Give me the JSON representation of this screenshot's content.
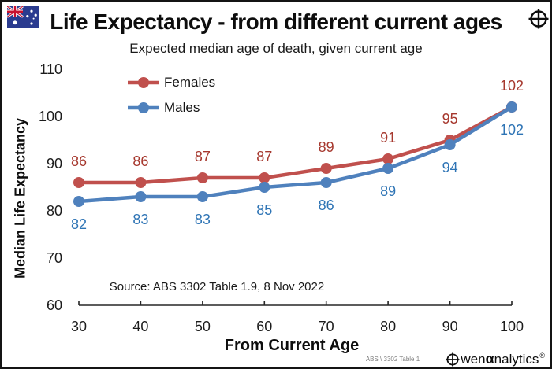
{
  "icons": {
    "top_left": "australian-flag-icon",
    "top_right": "reticle-icon",
    "logo_mark": "reticle-icon"
  },
  "chart_data": {
    "type": "line",
    "title": "Life Expectancy - from different current ages",
    "subtitle": "Expected median age of death, given current age",
    "xlabel": "From Current Age",
    "ylabel": "Median Life Expectancy",
    "x": [
      30,
      40,
      50,
      60,
      70,
      80,
      90,
      100
    ],
    "series": [
      {
        "name": "Females",
        "color": "#C0504D",
        "label_color": "#A6382E",
        "values": [
          86,
          86,
          87,
          87,
          89,
          91,
          95,
          102
        ]
      },
      {
        "name": "Males",
        "color": "#4F81BD",
        "label_color": "#2E74B5",
        "values": [
          82,
          83,
          83,
          85,
          86,
          89,
          94,
          102
        ]
      }
    ],
    "x_ticks": [
      30,
      40,
      50,
      60,
      70,
      80,
      90,
      100
    ],
    "y_ticks": [
      60,
      70,
      80,
      90,
      100,
      110
    ],
    "ylim": [
      60,
      110
    ],
    "grid": false,
    "legend_position": "top-left",
    "data_labels": true
  },
  "annotations": {
    "source": "Source: ABS 3302 Table 1.9,  8 Nov 2022",
    "footer_note": "ABS \\ 3302 Table 1"
  },
  "branding": {
    "logo_prefix": "wen",
    "logo_alpha": "α",
    "logo_suffix": "nalytics",
    "registered_mark": "®"
  }
}
